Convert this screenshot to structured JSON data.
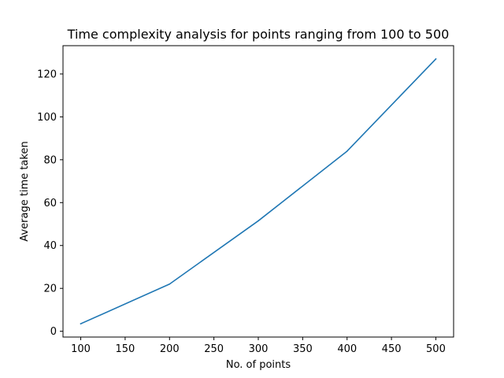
{
  "chart_data": {
    "type": "line",
    "title": "Time complexity analysis for points ranging from 100 to 500",
    "xlabel": "No. of points",
    "ylabel": "Average time taken",
    "x": [
      100,
      200,
      300,
      400,
      500
    ],
    "series": [
      {
        "values": [
          3.5,
          22,
          51.5,
          84,
          127
        ],
        "color": "#1f77b4"
      }
    ],
    "xlim": [
      80,
      520
    ],
    "ylim": [
      -2.7,
      133.2
    ],
    "xticks": [
      100,
      150,
      200,
      250,
      300,
      350,
      400,
      450,
      500
    ],
    "yticks": [
      0,
      20,
      40,
      60,
      80,
      100,
      120
    ],
    "grid": false,
    "legend": "none"
  }
}
